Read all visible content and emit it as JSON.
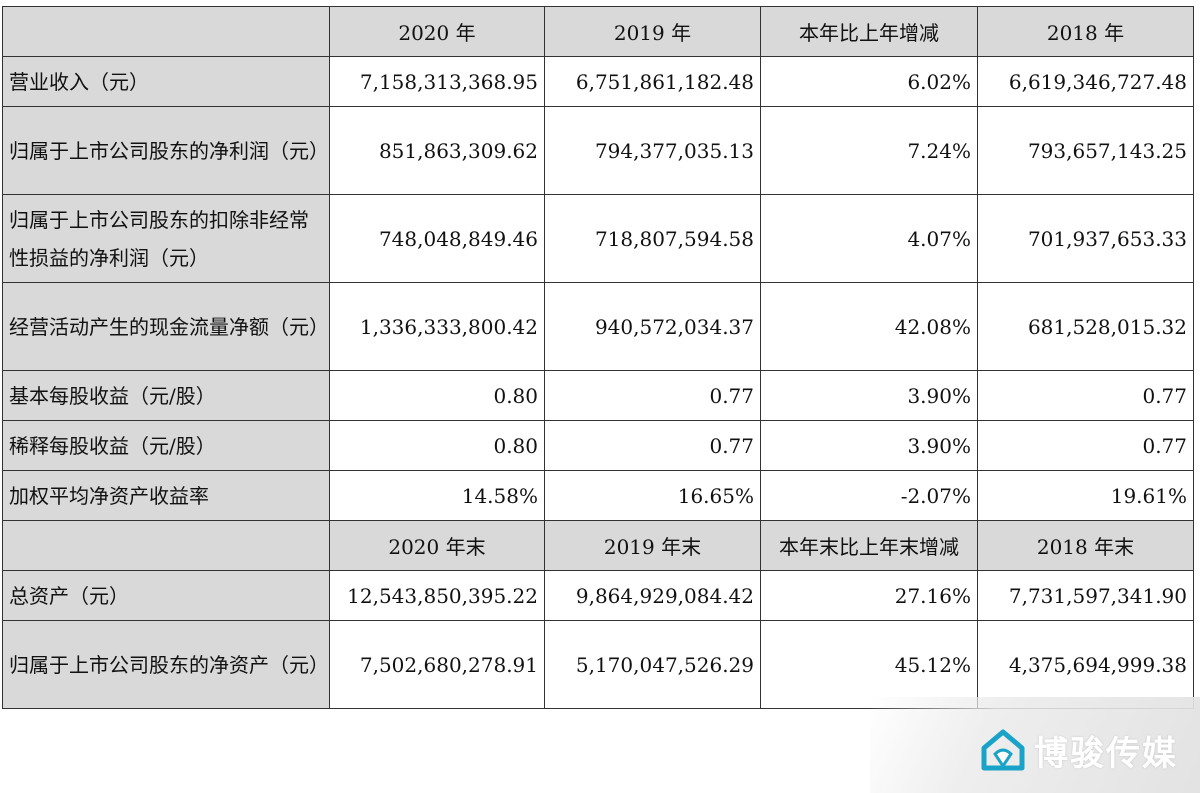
{
  "table": {
    "header_top": [
      "",
      "2020 年",
      "2019 年",
      "本年比上年增减",
      "2018 年"
    ],
    "rows_top": [
      {
        "label": "营业收入（元）",
        "v2020": "7,158,313,368.95",
        "v2019": "6,751,861,182.48",
        "change": "6.02%",
        "v2018": "6,619,346,727.48"
      },
      {
        "label": "归属于上市公司股东的净利润（元）",
        "v2020": "851,863,309.62",
        "v2019": "794,377,035.13",
        "change": "7.24%",
        "v2018": "793,657,143.25"
      },
      {
        "label": "归属于上市公司股东的扣除非经常性损益的净利润（元）",
        "v2020": "748,048,849.46",
        "v2019": "718,807,594.58",
        "change": "4.07%",
        "v2018": "701,937,653.33"
      },
      {
        "label": "经营活动产生的现金流量净额（元）",
        "v2020": "1,336,333,800.42",
        "v2019": "940,572,034.37",
        "change": "42.08%",
        "v2018": "681,528,015.32"
      },
      {
        "label": "基本每股收益（元/股）",
        "v2020": "0.80",
        "v2019": "0.77",
        "change": "3.90%",
        "v2018": "0.77"
      },
      {
        "label": "稀释每股收益（元/股）",
        "v2020": "0.80",
        "v2019": "0.77",
        "change": "3.90%",
        "v2018": "0.77"
      },
      {
        "label": "加权平均净资产收益率",
        "v2020": "14.58%",
        "v2019": "16.65%",
        "change": "-2.07%",
        "v2018": "19.61%"
      }
    ],
    "header_bottom": [
      "",
      "2020 年末",
      "2019 年末",
      "本年末比上年末增减",
      "2018 年末"
    ],
    "rows_bottom": [
      {
        "label": "总资产（元）",
        "v2020": "12,543,850,395.22",
        "v2019": "9,864,929,084.42",
        "change": "27.16%",
        "v2018": "7,731,597,341.90"
      },
      {
        "label": "归属于上市公司股东的净资产（元）",
        "v2020": "7,502,680,278.91",
        "v2019": "5,170,047,526.29",
        "change": "45.12%",
        "v2018": "4,375,694,999.38"
      }
    ]
  },
  "watermark": {
    "text": "博骏传媒",
    "logo_icon": "house-logo-icon",
    "logo_color": "#1aa3c8"
  }
}
